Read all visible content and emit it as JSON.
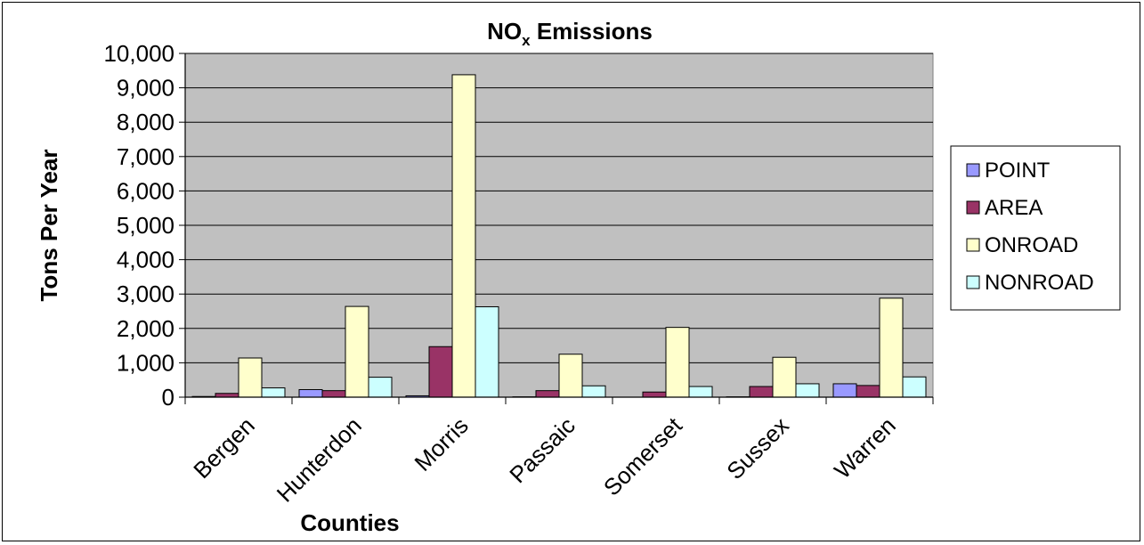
{
  "chart_data": {
    "type": "bar",
    "title": "NO",
    "title_subscript": "x",
    "title_suffix": " Emissions",
    "xlabel": "Counties",
    "ylabel": "Tons Per Year",
    "ylim": [
      0,
      10000
    ],
    "yticks": [
      0,
      1000,
      2000,
      3000,
      4000,
      5000,
      6000,
      7000,
      8000,
      9000,
      10000
    ],
    "ytick_labels": [
      "0",
      "1,000",
      "2,000",
      "3,000",
      "4,000",
      "5,000",
      "6,000",
      "7,000",
      "8,000",
      "9,000",
      "10,000"
    ],
    "categories": [
      "Bergen",
      "Hunterdon",
      "Morris",
      "Passaic",
      "Somerset",
      "Sussex",
      "Warren"
    ],
    "grid": true,
    "legend_position": "right",
    "plot_background": "#c0c0c0",
    "series": [
      {
        "name": "POINT",
        "color": "#9999ff",
        "values": [
          20,
          220,
          40,
          10,
          0,
          10,
          390
        ]
      },
      {
        "name": "AREA",
        "color": "#993366",
        "values": [
          110,
          190,
          1470,
          190,
          150,
          310,
          340
        ]
      },
      {
        "name": "ONROAD",
        "color": "#ffffcc",
        "values": [
          1140,
          2640,
          9380,
          1250,
          2030,
          1160,
          2880
        ]
      },
      {
        "name": "NONROAD",
        "color": "#ccffff",
        "values": [
          270,
          580,
          2630,
          330,
          310,
          390,
          590
        ]
      }
    ]
  }
}
